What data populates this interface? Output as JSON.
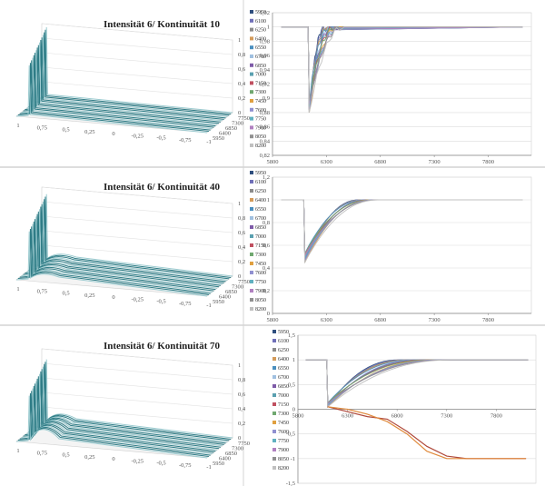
{
  "panels": [
    {
      "title": "Intensität 6/ Kontinuität 10",
      "left": {
        "z_ticks": [
          "1",
          "0,8",
          "0,6",
          "0,4",
          "0,2",
          "0"
        ],
        "x_ticks": [
          "1",
          "0,75",
          "0,5",
          "0,25",
          "0",
          "-0,25",
          "-0,5",
          "-0,75",
          "-1"
        ],
        "depth_ticks": [
          "7750",
          "7300",
          "6850",
          "6400",
          "5950"
        ]
      },
      "legend": [
        "5950",
        "6100",
        "6250",
        "6400",
        "6550",
        "6700",
        "6850",
        "7000",
        "7150",
        "7300",
        "7450",
        "7600",
        "7750",
        "7900",
        "8050",
        "8200"
      ],
      "chart_data": {
        "type": "line",
        "ylim": [
          0.82,
          1.02
        ],
        "yticks": [
          "1,02",
          "1",
          "0,98",
          "0,96",
          "0,94",
          "0,92",
          "0,9",
          "0,88",
          "0,86",
          "0,84",
          "0,82"
        ],
        "xlim": [
          5800,
          8200
        ],
        "xticks": [
          "5800",
          "6300",
          "6800",
          "7300",
          "7800"
        ],
        "baseline": 1,
        "dip_x": 6140,
        "dip_min": 0.88,
        "recover_x": 6380
      }
    },
    {
      "title": "Intensität 6/ Kontinuität 40",
      "left": {
        "z_ticks": [
          "1",
          "0,8",
          "0,6",
          "0,4",
          "0,2",
          "0"
        ],
        "x_ticks": [
          "1",
          "0,75",
          "0,5",
          "0,25",
          "0",
          "-0,25",
          "-0,5",
          "-0,75",
          "-1"
        ],
        "depth_ticks": [
          "7750",
          "7300",
          "6850",
          "6400",
          "5950"
        ]
      },
      "legend": [
        "5950",
        "6100",
        "6250",
        "6400",
        "6550",
        "6700",
        "6850",
        "7000",
        "7150",
        "7300",
        "7450",
        "7600",
        "7750",
        "7900",
        "8050",
        "8200"
      ],
      "chart_data": {
        "type": "line",
        "ylim": [
          0,
          1.2
        ],
        "yticks": [
          "1,2",
          "1",
          "0,8",
          "0,6",
          "0,4",
          "0,2",
          "0"
        ],
        "xlim": [
          5800,
          8200
        ],
        "xticks": [
          "5800",
          "6300",
          "6800",
          "7300",
          "7800"
        ],
        "baseline": 1,
        "dip_x": 6100,
        "dip_min": 0.45,
        "recover_x": 6700
      }
    },
    {
      "title": "Intensität 6/ Kontinuität 70",
      "left": {
        "z_ticks": [
          "1",
          "0,8",
          "0,6",
          "0,4",
          "0,2",
          "0"
        ],
        "x_ticks": [
          "1",
          "0,75",
          "0,5",
          "0,25",
          "0",
          "-0,25",
          "-0,5",
          "-0,75",
          "-1"
        ],
        "depth_ticks": [
          "7750",
          "7300",
          "6850",
          "6400",
          "5950"
        ]
      },
      "legend": [
        "5950",
        "6100",
        "6250",
        "6400",
        "6550",
        "6700",
        "6850",
        "7000",
        "7150",
        "7300",
        "7450",
        "7600",
        "7750",
        "7900",
        "8050",
        "8200"
      ],
      "chart_data": {
        "type": "line",
        "ylim": [
          -1.5,
          1.5
        ],
        "yticks": [
          "1,5",
          "1",
          "0,5",
          "0",
          "-0,5",
          "-1",
          "-1,5"
        ],
        "xlim": [
          5800,
          8200
        ],
        "xticks": [
          "5800",
          "6300",
          "6800",
          "7300",
          "7800"
        ],
        "baseline": 1,
        "dip_x": 6100,
        "dip_min": 0.05,
        "recover_x": 7100,
        "diverging_series": [
          {
            "x": [
              6100,
              6300,
              6500,
              6700,
              6900,
              7100,
              7300,
              7500,
              7700,
              7900,
              8100
            ],
            "y": [
              0.05,
              -0.05,
              -0.15,
              -0.2,
              -0.45,
              -0.75,
              -0.95,
              -1.0,
              -1.0,
              -1.0,
              -1.0
            ]
          },
          {
            "x": [
              6100,
              6300,
              6500,
              6700,
              6900,
              7100,
              7300,
              7500,
              7700,
              7900,
              8100
            ],
            "y": [
              0.05,
              0.0,
              -0.1,
              -0.25,
              -0.5,
              -0.85,
              -1.0,
              -1.0,
              -1.0,
              -1.0,
              -1.0
            ]
          }
        ]
      }
    }
  ],
  "colors": {
    "series": [
      "#2e4e7e",
      "#6f6fb8",
      "#8b8b8b",
      "#d49b5a",
      "#4a8fbf",
      "#a0c0e0",
      "#7e5ba8",
      "#5aa0b0",
      "#c05060",
      "#70a870",
      "#e0a040",
      "#9090d0",
      "#60b0c0",
      "#b080c0",
      "#909090",
      "#c0c0c0"
    ],
    "ribbon": "#2e7c86",
    "ribbon_light": "#9ccbd0",
    "diverging": [
      "#b04a3c",
      "#e08a3c"
    ]
  }
}
